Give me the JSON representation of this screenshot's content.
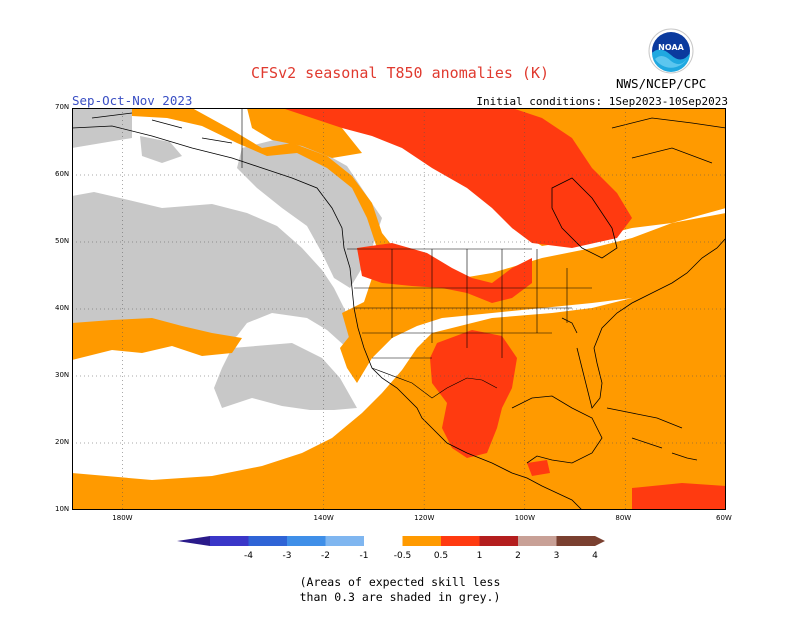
{
  "header": {
    "title": "CFSv2 seasonal T850 anomalies (K)",
    "season": "Sep-Oct-Nov 2023",
    "initial_conditions": "Initial conditions: 1Sep2023-10Sep2023",
    "agency": "NWS/NCEP/CPC",
    "logo_text": "NOAA"
  },
  "map": {
    "projection": "equirectangular",
    "lon_range": [
      -190,
      -60
    ],
    "lat_range": [
      10,
      70
    ],
    "lat_labels": [
      "70N",
      "60N",
      "50N",
      "40N",
      "30N",
      "20N",
      "10N"
    ],
    "lon_labels": [
      "180W",
      "140W",
      "120W",
      "100W",
      "80W",
      "60W"
    ],
    "low_skill_color": "#c8c8c8",
    "near_zero_color": "#ffffff"
  },
  "legend": {
    "tick_labels": [
      "-4",
      "-3",
      "-2",
      "-1",
      "-0.5",
      "0.5",
      "1",
      "2",
      "3",
      "4"
    ],
    "bins": [
      {
        "range": "-4 to -3",
        "color": "#3a36c8"
      },
      {
        "range": "-3 to -2",
        "color": "#2f64d6"
      },
      {
        "range": "-2 to -1",
        "color": "#3f8fe8"
      },
      {
        "range": "-1 to -0.5",
        "color": "#7fb6f0"
      },
      {
        "range": "-0.5 to 0.5",
        "color": "#ffffff"
      },
      {
        "range": "0.5 to 1",
        "color": "#ff9a00"
      },
      {
        "range": "1 to 2",
        "color": "#ff3a10"
      },
      {
        "range": "2 to 3",
        "color": "#b41e1e"
      },
      {
        "range": "3 to 4",
        "color": "#c8a096"
      },
      {
        "range": "> 4",
        "color": "#7a4030"
      }
    ]
  },
  "note": {
    "line1": "(Areas of expected skill less",
    "line2": "than 0.3 are shaded in grey.)"
  }
}
